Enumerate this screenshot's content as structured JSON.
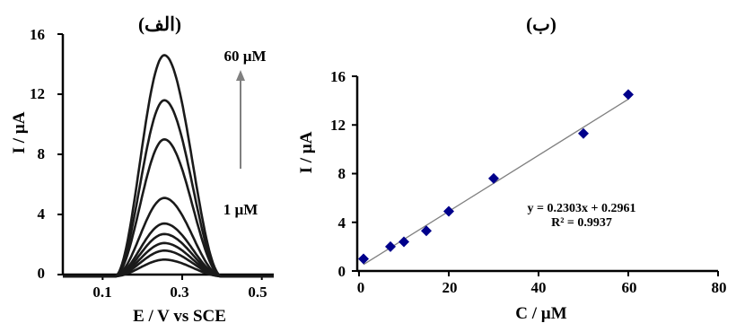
{
  "chart_data": [
    {
      "type": "line",
      "panel_label": "(الف)",
      "xlabel": "E / V vs SCE",
      "ylabel": "I / µA",
      "xlim": [
        0.0,
        0.53
      ],
      "ylim": [
        0,
        16
      ],
      "xticks": [
        "0.1",
        "0.3",
        "0.5"
      ],
      "yticks": [
        "0",
        "4",
        "8",
        "12",
        "16"
      ],
      "grid": false,
      "arrow_annotation": {
        "start_label": "1 µM",
        "end_label": "60 µM",
        "direction": "up"
      },
      "curve_shape": {
        "onset": 0.13,
        "peak_potential": 0.255,
        "end": 0.4
      },
      "series": [
        {
          "peak_current": 1.0
        },
        {
          "peak_current": 1.6
        },
        {
          "peak_current": 2.1
        },
        {
          "peak_current": 2.7
        },
        {
          "peak_current": 3.4
        },
        {
          "peak_current": 5.1
        },
        {
          "peak_current": 9.0
        },
        {
          "peak_current": 11.6
        },
        {
          "peak_current": 14.6
        }
      ]
    },
    {
      "type": "scatter",
      "panel_label": "(ب)",
      "xlabel": "C / µM",
      "ylabel": "I / µA",
      "xlim": [
        0,
        80
      ],
      "ylim": [
        0,
        16
      ],
      "xticks": [
        "0",
        "20",
        "40",
        "60",
        "80"
      ],
      "yticks": [
        "0",
        "4",
        "8",
        "12",
        "16"
      ],
      "grid": false,
      "x": [
        1,
        7,
        10,
        15,
        20,
        30,
        50,
        60
      ],
      "y": [
        1.0,
        2.0,
        2.4,
        3.3,
        4.9,
        7.6,
        11.3,
        14.5
      ],
      "trendline": {
        "slope": 0.2303,
        "intercept": 0.2961,
        "equation": "y = 0.2303x + 0.2961",
        "r_squared": "R² = 0.9937"
      },
      "marker_color": "#00008b"
    }
  ]
}
